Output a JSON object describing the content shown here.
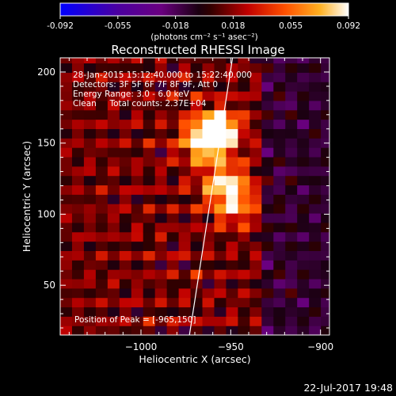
{
  "chart_data": {
    "type": "heatmap",
    "title": "Reconstructed RHESSI Image",
    "xlabel": "Heliocentric X (arcsec)",
    "ylabel": "Heliocentric Y (arcsec)",
    "xlim": [
      -1045,
      -895
    ],
    "ylim": [
      15,
      210
    ],
    "x_ticks": [
      -1000,
      -950,
      -900
    ],
    "y_ticks": [
      50,
      100,
      150,
      200
    ],
    "colorbar": {
      "label": "(photons cm⁻² s⁻¹ asec⁻²)",
      "range": [
        -0.092,
        0.092
      ],
      "ticks": [
        "-0.092",
        "-0.055",
        "-0.018",
        "0.018",
        "0.055",
        "0.092"
      ]
    },
    "annotations": [
      "28-Jan-2015 15:12:40.000 to 15:22:40.000",
      "Detectors: 3F 5F 6F 7F 8F 9F, Att 0",
      "Energy Range: 3.0 - 6.0 keV",
      "Clean     Total counts: 2.37E+04"
    ],
    "peak_label": "Position of Peak = [-965,150]",
    "peak": [
      -965,
      150
    ],
    "sources": [
      {
        "x": -963,
        "y": 150,
        "value": 0.092
      },
      {
        "x": -958,
        "y": 162,
        "value": 0.08
      },
      {
        "x": -953,
        "y": 122,
        "value": 0.07
      },
      {
        "x": -948,
        "y": 105,
        "value": 0.05
      }
    ],
    "limb_line": [
      [
        -973,
        15
      ],
      [
        -949,
        210
      ]
    ]
  },
  "footer": {
    "timestamp": "22-Jul-2017 19:48"
  },
  "colors": {
    "background": "#000000",
    "colormap": [
      "#0000ff",
      "#4b0082",
      "#800080",
      "#000000",
      "#b40000",
      "#ff4000",
      "#ff9000",
      "#ffd040",
      "#ffffff"
    ]
  }
}
